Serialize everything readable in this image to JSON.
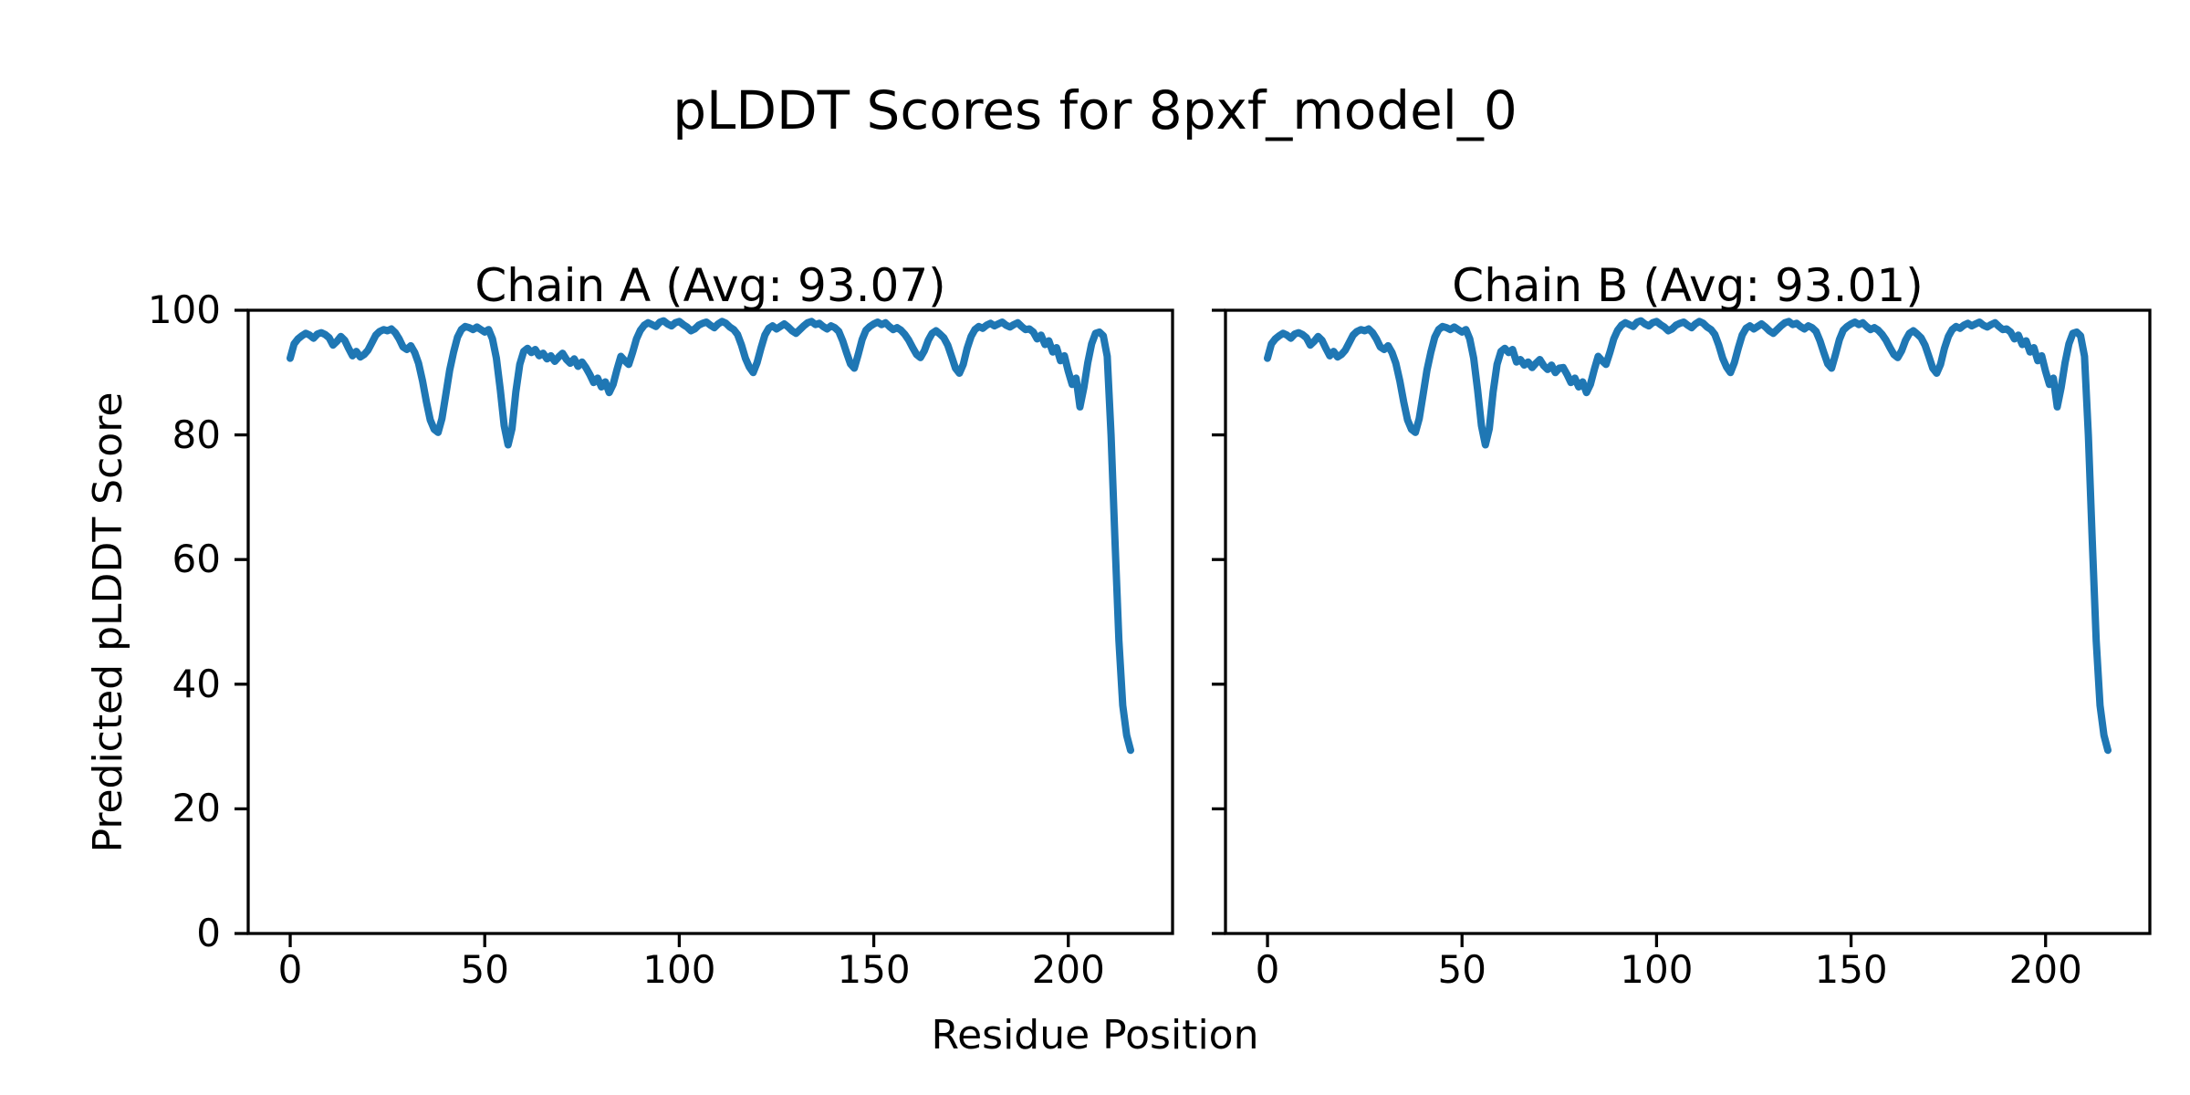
{
  "figure": {
    "title": "pLDDT Scores for 8pxf_model_0",
    "xlabel": "Residue Position",
    "ylabel": "Predicted pLDDT Score",
    "background_color": "#ffffff",
    "text_color": "#000000",
    "line_color": "#1f77b4",
    "spine_color": "#000000"
  },
  "chart_data": [
    {
      "type": "line",
      "title": "Chain A (Avg: 93.07)",
      "chain": "A",
      "average_plddt": 93.07,
      "xlabel": "Residue Position",
      "ylabel": "Predicted pLDDT Score",
      "xlim": [
        -10.8,
        226.8
      ],
      "ylim": [
        0,
        100
      ],
      "x_ticks": [
        0,
        50,
        100,
        150,
        200
      ],
      "y_ticks": [
        0,
        20,
        40,
        60,
        80,
        100
      ],
      "y_tick_labels_visible": true,
      "grid": false,
      "legend": "none",
      "series": [
        {
          "name": "pLDDT",
          "color": "#1f77b4",
          "x_start": 0,
          "x_step": 1,
          "values": [
            92.3,
            94.6,
            95.4,
            95.9,
            96.3,
            96.0,
            95.5,
            96.2,
            96.4,
            96.1,
            95.6,
            94.4,
            95.0,
            95.8,
            95.2,
            93.9,
            92.7,
            93.4,
            92.5,
            92.9,
            93.6,
            94.8,
            96.0,
            96.6,
            96.9,
            96.7,
            97.0,
            96.4,
            95.4,
            94.1,
            93.7,
            94.3,
            93.2,
            91.5,
            88.7,
            85.3,
            82.4,
            80.9,
            80.4,
            82.6,
            86.5,
            90.4,
            93.3,
            95.7,
            96.9,
            97.4,
            97.2,
            96.9,
            97.3,
            96.9,
            96.5,
            96.9,
            95.4,
            92.3,
            87.2,
            81.5,
            78.4,
            81.0,
            86.9,
            91.3,
            93.4,
            93.9,
            93.2,
            93.7,
            92.7,
            93.1,
            92.2,
            92.7,
            91.8,
            92.5,
            93.1,
            92.1,
            91.5,
            92.2,
            91.0,
            91.7,
            90.8,
            89.7,
            88.4,
            89.1,
            87.7,
            88.5,
            86.8,
            88.1,
            90.5,
            92.6,
            91.9,
            91.3,
            93.2,
            95.4,
            96.8,
            97.6,
            98.0,
            97.7,
            97.4,
            98.1,
            98.3,
            97.8,
            97.5,
            98.0,
            98.2,
            97.7,
            97.3,
            96.7,
            97.0,
            97.6,
            97.9,
            98.1,
            97.6,
            97.2,
            97.8,
            98.2,
            97.9,
            97.3,
            96.9,
            96.1,
            94.4,
            92.3,
            90.9,
            90.0,
            91.6,
            93.9,
            96.0,
            97.1,
            97.5,
            97.0,
            97.4,
            97.8,
            97.3,
            96.7,
            96.3,
            96.9,
            97.5,
            98.0,
            98.2,
            97.7,
            97.9,
            97.4,
            97.0,
            97.5,
            97.2,
            96.6,
            95.1,
            93.2,
            91.4,
            90.7,
            92.9,
            95.3,
            96.8,
            97.4,
            97.8,
            98.1,
            97.7,
            98.0,
            97.4,
            96.9,
            97.2,
            96.8,
            96.1,
            95.2,
            94.0,
            92.9,
            92.4,
            93.5,
            95.2,
            96.3,
            96.7,
            96.2,
            95.6,
            94.4,
            92.6,
            90.7,
            89.9,
            91.3,
            93.9,
            95.8,
            96.9,
            97.4,
            97.1,
            97.6,
            97.9,
            97.5,
            97.8,
            98.1,
            97.6,
            97.3,
            97.7,
            98.0,
            97.4,
            96.9,
            97.0,
            96.5,
            95.4,
            96.0,
            94.5,
            95.1,
            93.3,
            94.0,
            91.9,
            92.7,
            90.2,
            88.1,
            89.1,
            84.5,
            87.6,
            91.6,
            94.6,
            96.3,
            96.5,
            95.9,
            92.6,
            80.0,
            63.0,
            47.0,
            36.6,
            31.8,
            29.4
          ]
        }
      ]
    },
    {
      "type": "line",
      "title": "Chain B (Avg: 93.01)",
      "chain": "B",
      "average_plddt": 93.01,
      "xlabel": "Residue Position",
      "ylabel": "Predicted pLDDT Score",
      "xlim": [
        -10.8,
        226.8
      ],
      "ylim": [
        0,
        100
      ],
      "x_ticks": [
        0,
        50,
        100,
        150,
        200
      ],
      "y_ticks": [
        0,
        20,
        40,
        60,
        80,
        100
      ],
      "y_tick_labels_visible": false,
      "grid": false,
      "legend": "none",
      "series": [
        {
          "name": "pLDDT",
          "color": "#1f77b4",
          "x_start": 0,
          "x_step": 1,
          "values": [
            92.3,
            94.6,
            95.4,
            95.9,
            96.3,
            96.0,
            95.5,
            96.2,
            96.4,
            96.1,
            95.6,
            94.4,
            95.0,
            95.8,
            95.2,
            93.9,
            92.7,
            93.4,
            92.5,
            92.9,
            93.6,
            94.8,
            96.0,
            96.6,
            96.9,
            96.7,
            97.0,
            96.4,
            95.4,
            94.1,
            93.7,
            94.3,
            93.2,
            91.5,
            88.7,
            85.3,
            82.4,
            80.9,
            80.4,
            82.6,
            86.5,
            90.4,
            93.3,
            95.7,
            96.9,
            97.4,
            97.2,
            96.9,
            97.3,
            96.9,
            96.5,
            96.9,
            95.4,
            92.3,
            87.2,
            81.5,
            78.4,
            81.0,
            86.9,
            91.3,
            93.4,
            93.9,
            93.2,
            93.7,
            91.7,
            92.1,
            91.2,
            91.7,
            90.8,
            91.5,
            92.1,
            91.1,
            90.5,
            91.2,
            90.0,
            90.7,
            90.8,
            89.7,
            88.4,
            89.1,
            87.7,
            88.5,
            86.8,
            88.1,
            90.5,
            92.6,
            91.9,
            91.3,
            93.2,
            95.4,
            96.8,
            97.6,
            98.0,
            97.7,
            97.4,
            98.1,
            98.3,
            97.8,
            97.5,
            98.0,
            98.2,
            97.7,
            97.3,
            96.7,
            97.0,
            97.6,
            97.9,
            98.1,
            97.6,
            97.2,
            97.8,
            98.2,
            97.9,
            97.3,
            96.9,
            96.1,
            94.4,
            92.3,
            90.9,
            90.0,
            91.6,
            93.9,
            96.0,
            97.1,
            97.5,
            97.0,
            97.4,
            97.8,
            97.3,
            96.7,
            96.3,
            96.9,
            97.5,
            98.0,
            98.2,
            97.7,
            97.9,
            97.4,
            97.0,
            97.5,
            97.2,
            96.6,
            95.1,
            93.2,
            91.4,
            90.7,
            92.9,
            95.3,
            96.8,
            97.4,
            97.8,
            98.1,
            97.7,
            98.0,
            97.4,
            96.9,
            97.2,
            96.8,
            96.1,
            95.2,
            94.0,
            92.9,
            92.4,
            93.5,
            95.2,
            96.3,
            96.7,
            96.2,
            95.6,
            94.4,
            92.6,
            90.7,
            89.9,
            91.3,
            93.9,
            95.8,
            96.9,
            97.4,
            97.1,
            97.6,
            97.9,
            97.5,
            97.8,
            98.1,
            97.6,
            97.3,
            97.7,
            98.0,
            97.4,
            96.9,
            97.0,
            96.5,
            95.4,
            96.0,
            94.5,
            95.1,
            93.3,
            94.0,
            91.9,
            92.7,
            90.2,
            88.1,
            89.1,
            84.5,
            87.6,
            91.6,
            94.6,
            96.3,
            96.5,
            95.9,
            92.6,
            80.0,
            63.0,
            47.0,
            36.6,
            31.8,
            29.4
          ]
        }
      ]
    }
  ]
}
